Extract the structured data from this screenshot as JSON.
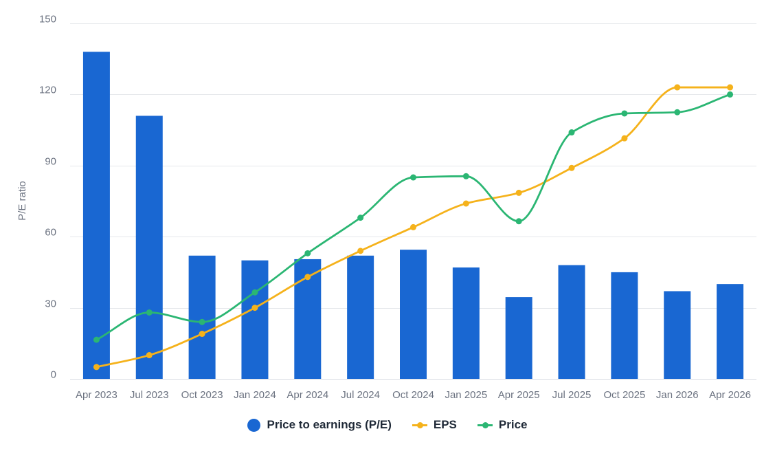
{
  "chart_data": {
    "type": "bar",
    "title": "",
    "xlabel": "",
    "ylabel": "P/E ratio",
    "ylim": [
      0,
      150
    ],
    "yticks": [
      0,
      30,
      60,
      90,
      120,
      150
    ],
    "grid": true,
    "legend_position": "bottom-center",
    "categories": [
      "Apr 2023",
      "Jul 2023",
      "Oct 2023",
      "Jan 2024",
      "Apr 2024",
      "Jul 2024",
      "Oct 2024",
      "Jan 2025",
      "Apr 2025",
      "Jul 2025",
      "Oct 2025",
      "Jan 2026",
      "Apr 2026"
    ],
    "series": [
      {
        "name": "Price to earnings (P/E)",
        "kind": "bar",
        "color": "#1967d2",
        "values": [
          138,
          111,
          52,
          50,
          50.5,
          52,
          54.5,
          47,
          34.5,
          48,
          45,
          37,
          40
        ]
      },
      {
        "name": "EPS",
        "kind": "line",
        "color": "#f5b21b",
        "values": [
          5,
          10,
          19,
          30,
          43,
          54,
          64,
          74,
          78.5,
          89,
          101.5,
          123,
          123
        ]
      },
      {
        "name": "Price",
        "kind": "line",
        "color": "#2bb673",
        "values": [
          16.5,
          28,
          24,
          36.5,
          53,
          68,
          85,
          85.5,
          66.5,
          104,
          112,
          112.5,
          120
        ]
      }
    ]
  }
}
